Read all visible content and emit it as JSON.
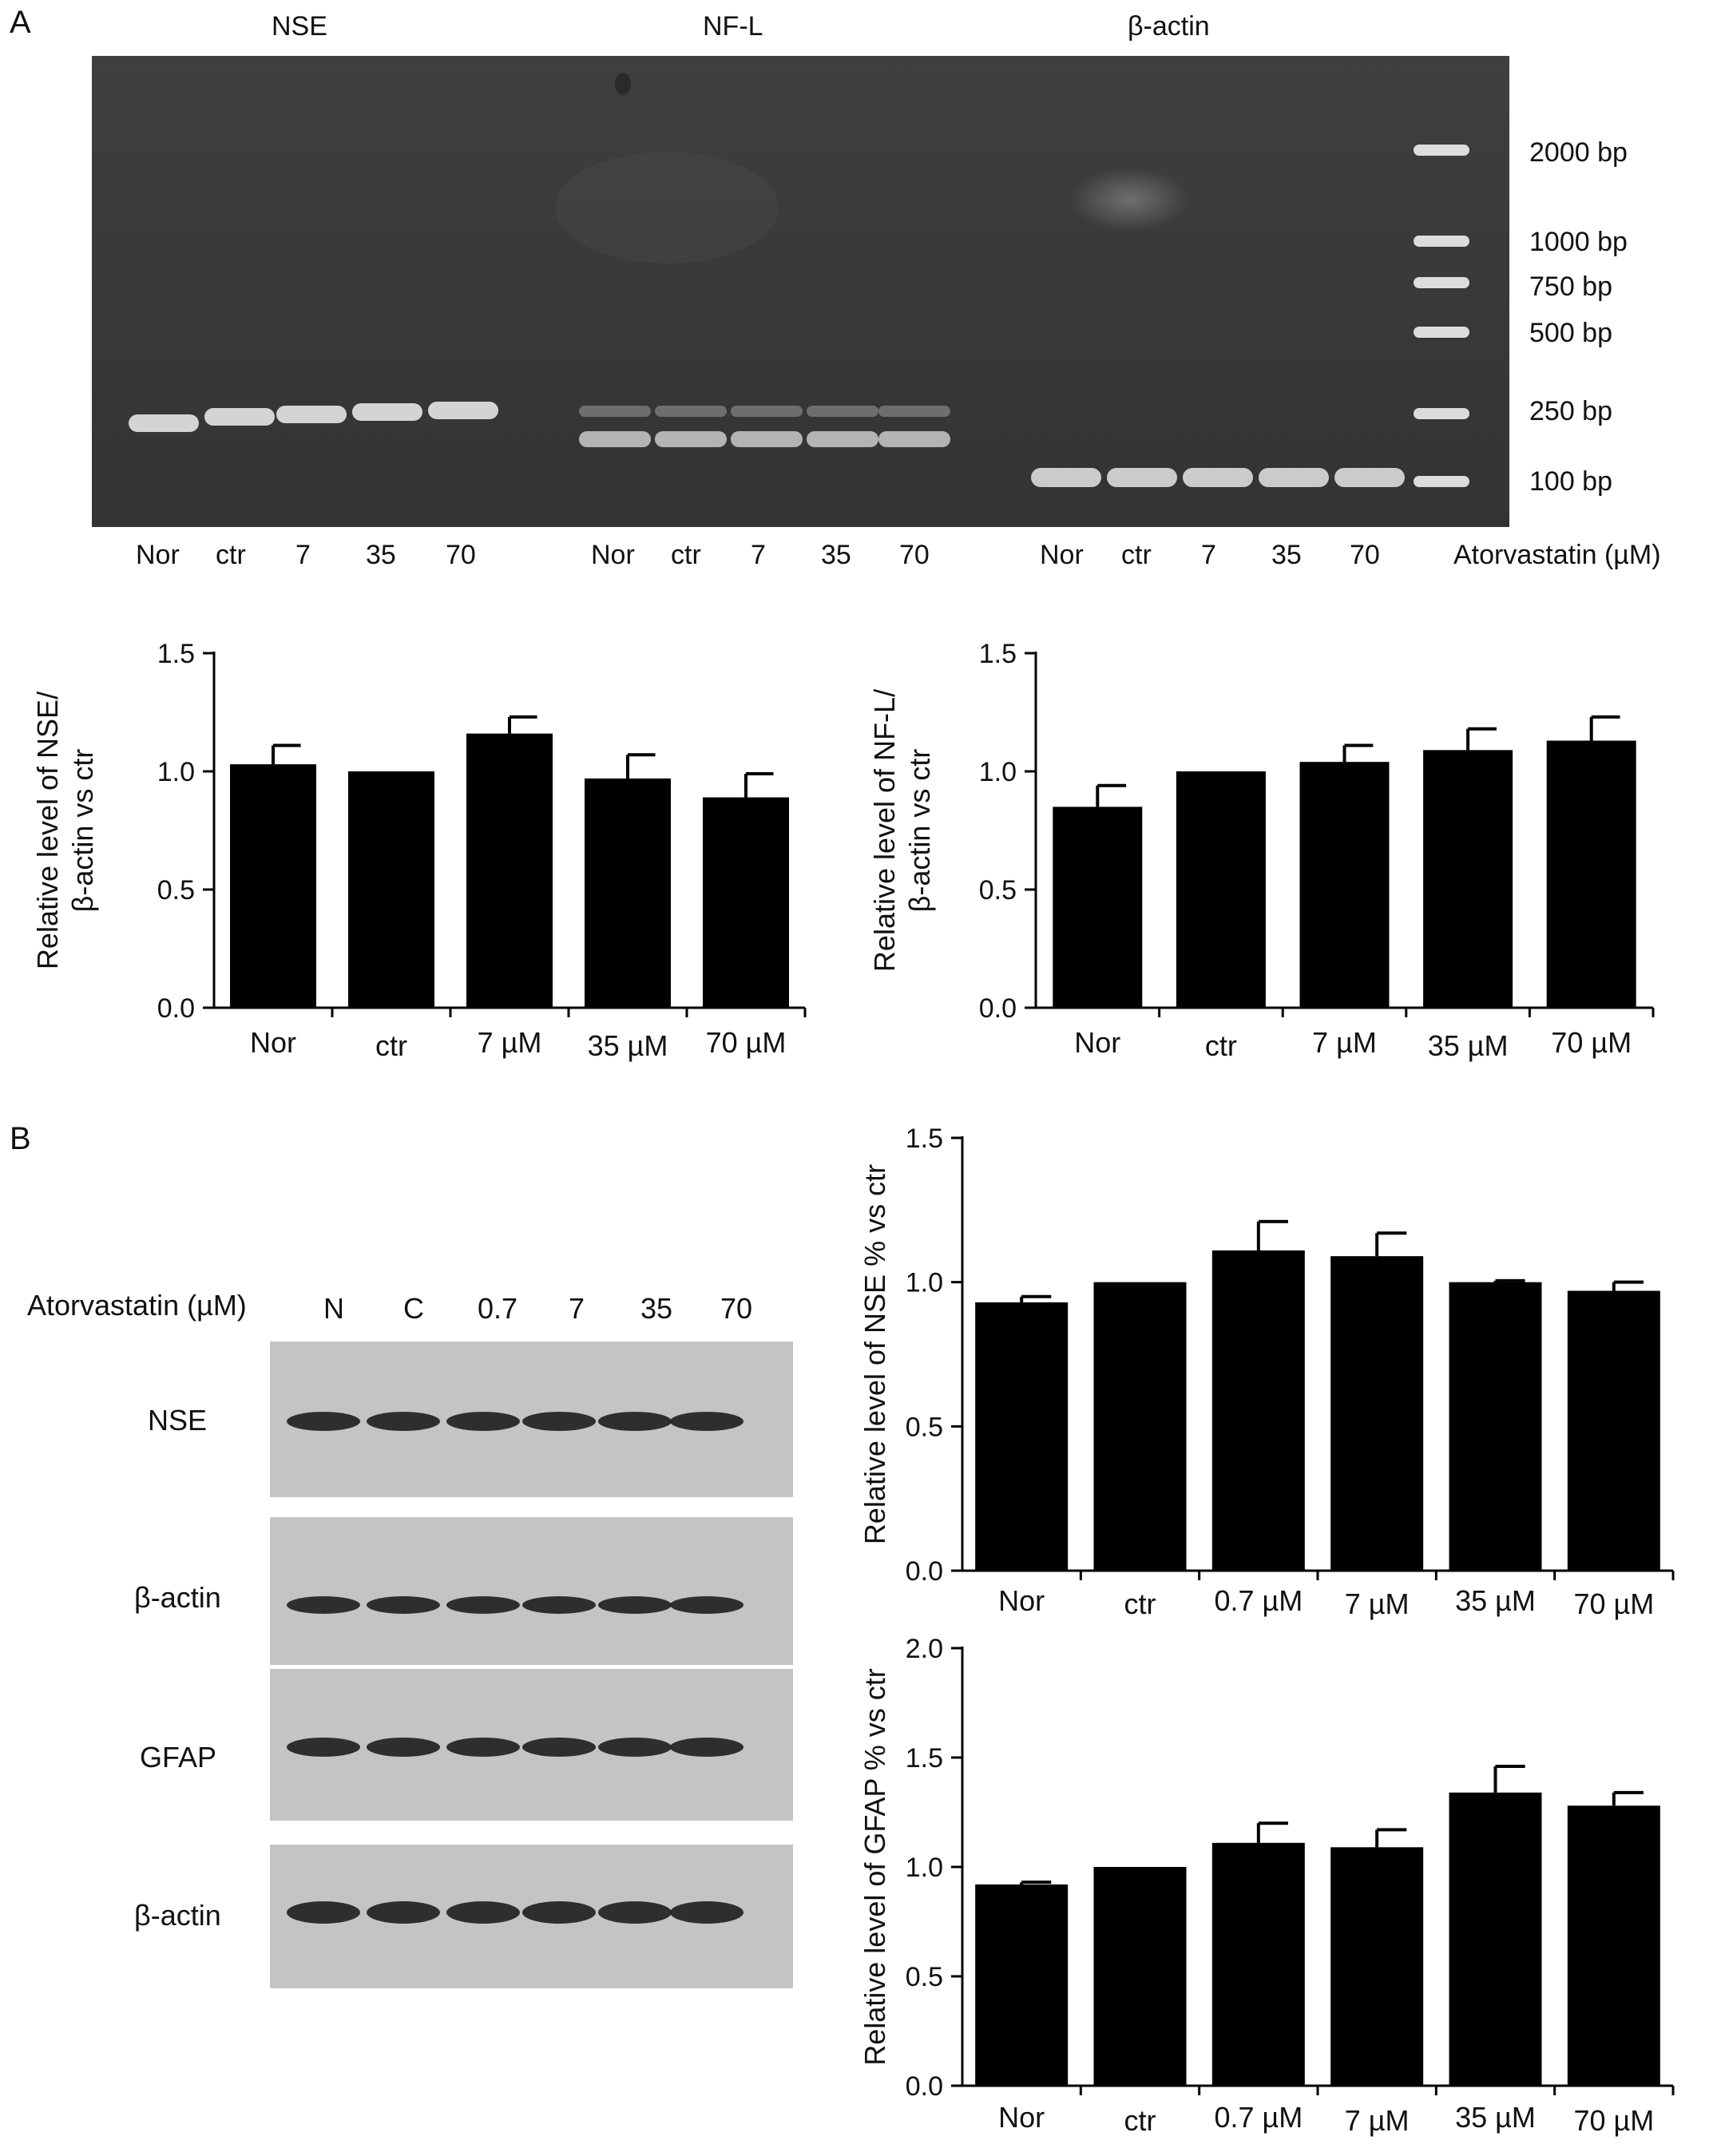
{
  "panel_a": {
    "letter": "A",
    "gel": {
      "gene_labels": [
        "NSE",
        "NF-L",
        "β-actin"
      ],
      "ladder_labels": [
        "2000 bp",
        "1000 bp",
        "750 bp",
        "500 bp",
        "250 bp",
        "100 bp"
      ],
      "lane_labels": [
        "Nor",
        "ctr",
        "7",
        "35",
        "70"
      ],
      "treatment_label": "Atorvastatin (µM)"
    }
  },
  "panel_b": {
    "letter": "B",
    "blot": {
      "treatment_label": "Atorvastatin (µM)",
      "lane_labels": [
        "N",
        "C",
        "0.7",
        "7",
        "35",
        "70"
      ],
      "row_labels": [
        "NSE",
        "β-actin",
        "GFAP",
        "β-actin"
      ]
    }
  },
  "colors": {
    "bar": "#000000",
    "gel_background": "#3a3a3a",
    "band": "#e6e6e6"
  },
  "chart_data": [
    {
      "id": "a-nse",
      "type": "bar",
      "categories": [
        "Nor",
        "ctr",
        "7 µM",
        "35 µM",
        "70 µM"
      ],
      "values": [
        1.03,
        1.0,
        1.16,
        0.97,
        0.89
      ],
      "errors": [
        0.08,
        0.0,
        0.07,
        0.1,
        0.1
      ],
      "ylabel_lines": [
        "Relative level of NSE/",
        "β-actin vs ctr"
      ],
      "ylim": [
        0,
        1.5
      ],
      "yticks": [
        "0.0",
        "0.5",
        "1.0",
        "1.5"
      ]
    },
    {
      "id": "a-nfl",
      "type": "bar",
      "categories": [
        "Nor",
        "ctr",
        "7 µM",
        "35 µM",
        "70 µM"
      ],
      "values": [
        0.85,
        1.0,
        1.04,
        1.09,
        1.13
      ],
      "errors": [
        0.09,
        0.0,
        0.07,
        0.09,
        0.1
      ],
      "ylabel_lines": [
        "Relative level of NF-L/",
        "β-actin vs ctr"
      ],
      "ylim": [
        0,
        1.5
      ],
      "yticks": [
        "0.0",
        "0.5",
        "1.0",
        "1.5"
      ]
    },
    {
      "id": "b-nse",
      "type": "bar",
      "categories": [
        "Nor",
        "ctr",
        "0.7 µM",
        "7 µM",
        "35 µM",
        "70 µM"
      ],
      "values": [
        0.93,
        1.0,
        1.11,
        1.09,
        1.0,
        0.97
      ],
      "errors": [
        0.02,
        0.0,
        0.1,
        0.08,
        0.005,
        0.03
      ],
      "ylabel_lines": [
        "Relative level of NSE % vs ctr"
      ],
      "ylim": [
        0,
        1.5
      ],
      "yticks": [
        "0.0",
        "0.5",
        "1.0",
        "1.5"
      ]
    },
    {
      "id": "b-gfap",
      "type": "bar",
      "categories": [
        "Nor",
        "ctr",
        "0.7 µM",
        "7 µM",
        "35 µM",
        "70 µM"
      ],
      "values": [
        0.92,
        1.0,
        1.11,
        1.09,
        1.34,
        1.28
      ],
      "errors": [
        0.01,
        0.0,
        0.09,
        0.08,
        0.12,
        0.06
      ],
      "ylabel_lines": [
        "Relative level of GFAP % vs ctr"
      ],
      "ylim": [
        0,
        2.0
      ],
      "yticks": [
        "0.0",
        "0.5",
        "1.0",
        "1.5",
        "2.0"
      ]
    }
  ]
}
